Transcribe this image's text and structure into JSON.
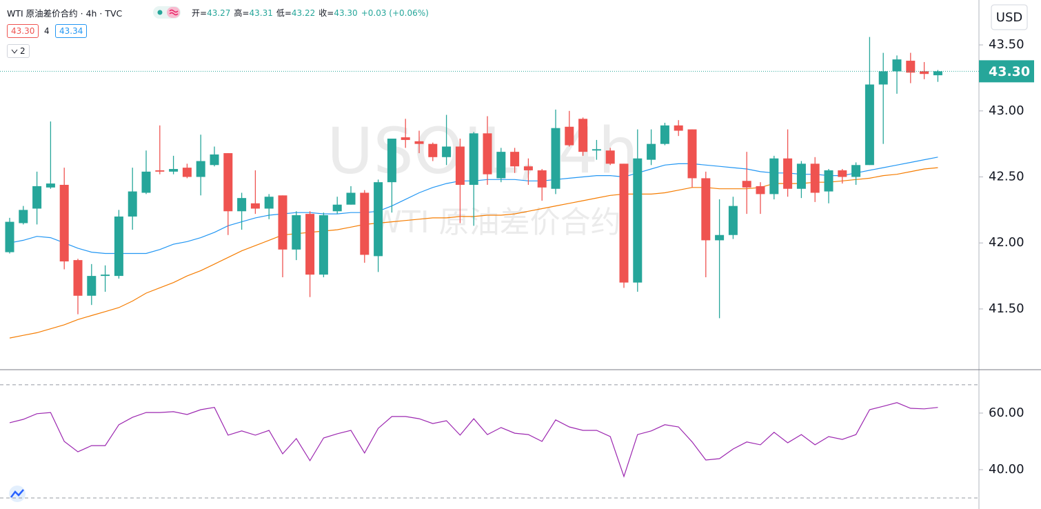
{
  "header": {
    "title": "WTI 原油差价合约 · 4h · TVC",
    "ohlc": [
      {
        "label": "开=",
        "value": "43.27"
      },
      {
        "label": "高=",
        "value": "43.31"
      },
      {
        "label": "低=",
        "value": "43.22"
      },
      {
        "label": "收=",
        "value": "43.30"
      }
    ],
    "change": "+0.03 (+0.06%)",
    "bid": "43.30",
    "spread": "4",
    "ask": "43.34",
    "pane_count": "2"
  },
  "currency": "USD",
  "watermark": {
    "symbol": "USOIL, 4h",
    "description": "WTI 原油差价合约"
  },
  "chart_data": [
    {
      "type": "candlestick",
      "open": [
        41.93,
        42.15,
        42.26,
        42.42,
        42.44,
        41.87,
        41.6,
        41.75,
        41.75,
        42.2,
        42.38,
        42.55,
        42.54,
        42.57,
        42.5,
        42.59,
        42.68,
        42.24,
        42.3,
        42.26,
        42.36,
        41.95,
        42.22,
        41.76,
        42.24,
        42.29,
        42.38,
        41.9,
        42.46,
        42.8,
        42.77,
        42.75,
        42.65,
        42.73,
        42.44,
        42.83,
        42.49,
        42.69,
        42.58,
        42.55,
        42.41,
        42.88,
        42.94,
        42.7,
        42.7,
        42.6,
        41.7,
        42.63,
        42.75,
        42.89,
        42.86,
        42.49,
        42.02,
        42.06,
        42.47,
        42.43,
        42.37,
        42.64,
        42.41,
        42.6,
        42.39,
        42.55,
        42.5,
        42.59,
        43.2,
        43.3,
        43.38,
        43.3,
        43.27
      ],
      "high": [
        42.19,
        42.28,
        42.54,
        42.92,
        42.57,
        41.88,
        41.84,
        41.83,
        42.25,
        42.57,
        42.7,
        42.89,
        42.66,
        42.6,
        42.82,
        42.73,
        42.68,
        42.38,
        42.55,
        42.37,
        42.36,
        42.24,
        42.24,
        42.23,
        42.35,
        42.43,
        42.4,
        42.48,
        42.79,
        42.94,
        42.85,
        42.76,
        42.97,
        42.79,
        42.84,
        42.96,
        42.72,
        42.72,
        42.64,
        42.56,
        43.01,
        43.0,
        42.95,
        42.78,
        42.72,
        42.6,
        42.86,
        42.86,
        42.91,
        42.93,
        42.86,
        42.54,
        42.33,
        42.35,
        42.69,
        42.46,
        42.66,
        42.86,
        42.62,
        42.65,
        42.56,
        42.56,
        42.61,
        43.56,
        43.44,
        43.42,
        43.44,
        43.37,
        43.31
      ],
      "low": [
        41.92,
        42.14,
        42.14,
        42.41,
        41.8,
        41.46,
        41.53,
        41.63,
        41.73,
        42.1,
        42.37,
        42.52,
        42.52,
        42.49,
        42.36,
        42.58,
        42.06,
        42.1,
        42.22,
        42.18,
        41.74,
        41.87,
        41.59,
        41.74,
        42.22,
        42.29,
        41.85,
        41.78,
        42.23,
        42.72,
        42.68,
        42.62,
        42.59,
        42.15,
        42.13,
        42.44,
        42.46,
        42.53,
        42.44,
        42.32,
        42.37,
        42.73,
        42.66,
        42.63,
        42.59,
        41.66,
        41.63,
        42.59,
        42.74,
        42.81,
        42.42,
        41.74,
        41.43,
        42.03,
        42.22,
        42.22,
        42.33,
        42.35,
        42.34,
        42.31,
        42.3,
        42.45,
        42.44,
        42.59,
        42.75,
        43.13,
        43.21,
        43.24,
        43.22
      ],
      "close": [
        42.16,
        42.25,
        42.43,
        42.45,
        41.86,
        41.6,
        41.75,
        41.76,
        42.2,
        42.39,
        42.54,
        42.54,
        42.56,
        42.5,
        42.62,
        42.67,
        42.24,
        42.34,
        42.26,
        42.35,
        41.95,
        42.21,
        41.76,
        42.21,
        42.29,
        42.38,
        41.91,
        42.46,
        42.79,
        42.78,
        42.75,
        42.65,
        42.73,
        42.44,
        42.83,
        42.52,
        42.69,
        42.58,
        42.55,
        42.42,
        42.87,
        42.74,
        42.69,
        42.71,
        42.6,
        41.7,
        42.64,
        42.75,
        42.89,
        42.85,
        42.49,
        42.02,
        42.06,
        42.28,
        42.42,
        42.37,
        42.64,
        42.41,
        42.6,
        42.38,
        42.55,
        42.5,
        42.59,
        43.2,
        43.3,
        43.39,
        43.29,
        43.28,
        43.3
      ],
      "colors": {
        "up": "#26a69a",
        "down": "#ef5350"
      },
      "ma": [
        {
          "color": "#2196f3",
          "values": [
            42.0,
            42.02,
            42.05,
            42.04,
            42.0,
            41.96,
            41.93,
            41.92,
            41.92,
            41.92,
            41.92,
            41.95,
            41.99,
            42.01,
            42.04,
            42.08,
            42.13,
            42.16,
            42.19,
            42.21,
            42.22,
            42.23,
            42.23,
            42.22,
            42.22,
            42.23,
            42.23,
            42.24,
            42.28,
            42.33,
            42.38,
            42.42,
            42.45,
            42.47,
            42.47,
            42.48,
            42.48,
            42.48,
            42.47,
            42.47,
            42.48,
            42.49,
            42.5,
            42.51,
            42.51,
            42.5,
            42.53,
            42.56,
            42.59,
            42.6,
            42.6,
            42.59,
            42.58,
            42.57,
            42.56,
            42.54,
            42.53,
            42.53,
            42.52,
            42.52,
            42.51,
            42.51,
            42.53,
            42.55,
            42.57,
            42.59,
            42.61,
            42.63,
            42.65
          ]
        },
        {
          "color": "#f57c00",
          "values": [
            41.28,
            41.3,
            41.32,
            41.35,
            41.38,
            41.42,
            41.45,
            41.48,
            41.51,
            41.56,
            41.62,
            41.66,
            41.7,
            41.75,
            41.79,
            41.84,
            41.89,
            41.94,
            41.98,
            42.02,
            42.06,
            42.07,
            42.08,
            42.09,
            42.1,
            42.12,
            42.14,
            42.15,
            42.16,
            42.17,
            42.18,
            42.19,
            42.19,
            42.2,
            42.2,
            42.21,
            42.21,
            42.22,
            42.24,
            42.26,
            42.28,
            42.3,
            42.32,
            42.34,
            42.36,
            42.37,
            42.37,
            42.37,
            42.38,
            42.4,
            42.42,
            42.42,
            42.41,
            42.41,
            42.41,
            42.42,
            42.45,
            42.45,
            42.45,
            42.46,
            42.46,
            42.47,
            42.48,
            42.49,
            42.51,
            42.52,
            42.54,
            42.56,
            42.57
          ]
        }
      ],
      "last_price": {
        "value": 43.3,
        "label": "43.30"
      },
      "ylim": [
        41.04,
        43.84
      ],
      "yticks": [
        {
          "value": 43.5,
          "label": "43.50"
        },
        {
          "value": 43,
          "label": "43.00"
        },
        {
          "value": 42.5,
          "label": "42.50"
        },
        {
          "value": 42,
          "label": "42.00"
        },
        {
          "value": 41.5,
          "label": "41.50"
        }
      ]
    },
    {
      "type": "line",
      "color": "#9c27b0",
      "values": [
        56.6,
        57.8,
        59.8,
        60.2,
        50,
        46.3,
        48.5,
        48.5,
        55.9,
        58.5,
        60.2,
        60.2,
        60.5,
        59.5,
        61.2,
        62,
        52.2,
        53.7,
        52.2,
        53.9,
        45.6,
        51,
        43.2,
        51.2,
        52.7,
        53.9,
        45.9,
        54.6,
        58.8,
        58.8,
        58,
        56.3,
        57.3,
        52.2,
        58,
        52.4,
        54.9,
        52.9,
        52.4,
        50,
        57.6,
        55.1,
        53.9,
        53.9,
        51.7,
        37.6,
        52.4,
        53.7,
        55.9,
        55.1,
        49.8,
        43.4,
        43.9,
        47.3,
        49.8,
        48.8,
        53.2,
        49.5,
        52.4,
        48.8,
        51.7,
        50.7,
        52.4,
        61.2,
        62.4,
        63.7,
        61.7,
        61.5,
        62
      ],
      "bands": [
        70,
        30
      ],
      "ylim": [
        26.1,
        75.1
      ],
      "yticks": [
        {
          "value": 60,
          "label": "60.00"
        },
        {
          "value": 40,
          "label": "40.00"
        }
      ]
    }
  ]
}
